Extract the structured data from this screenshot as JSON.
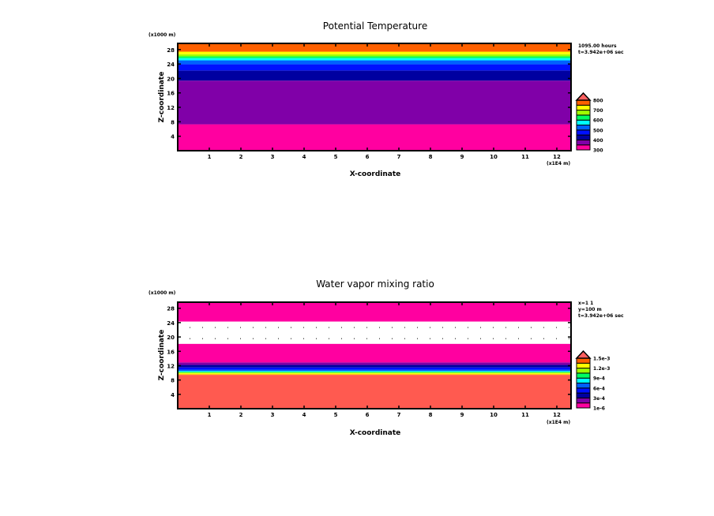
{
  "chart_data": [
    {
      "type": "heatmap",
      "title": "Potential Temperature",
      "xlabel": "X-coordinate",
      "ylabel": "Z-coordinate",
      "x_unit": "(x1E4 m)",
      "y_unit": "(x1000 m)",
      "info": [
        "1095.00 hours",
        "t=3.942e+06 sec"
      ],
      "xlim": [
        0,
        12.45
      ],
      "ylim": [
        0,
        29.7
      ],
      "xticks": [
        1,
        2,
        3,
        4,
        5,
        6,
        7,
        8,
        9,
        10,
        11,
        12
      ],
      "yticks": [
        4,
        8,
        12,
        16,
        20,
        24,
        28
      ],
      "bands": [
        {
          "z0": 0,
          "z1": 7.3,
          "color": "#ff00a0"
        },
        {
          "z0": 7.3,
          "z1": 19.4,
          "color": "#8000a8"
        },
        {
          "z0": 19.4,
          "z1": 22.2,
          "color": "#0000a0"
        },
        {
          "z0": 22.2,
          "z1": 23.9,
          "color": "#0010ff"
        },
        {
          "z0": 23.9,
          "z1": 25.0,
          "color": "#0060ff"
        },
        {
          "z0": 25.0,
          "z1": 25.6,
          "color": "#00ffff"
        },
        {
          "z0": 25.6,
          "z1": 26.1,
          "color": "#00ff60"
        },
        {
          "z0": 26.1,
          "z1": 26.7,
          "color": "#a0ff00"
        },
        {
          "z0": 26.7,
          "z1": 27.4,
          "color": "#ffff00"
        },
        {
          "z0": 27.4,
          "z1": 29.7,
          "color": "#ff6000"
        }
      ],
      "colorbar": {
        "colors": [
          "#ff00a0",
          "#8000a8",
          "#0000a0",
          "#0010ff",
          "#0060ff",
          "#00ffff",
          "#00ff60",
          "#a0ff00",
          "#ffff00",
          "#ff6000"
        ],
        "over_color": "#ff6060",
        "labels": [
          "800",
          "700",
          "600",
          "500",
          "400",
          "300"
        ]
      }
    },
    {
      "type": "heatmap",
      "title": "Water vapor mixing ratio",
      "xlabel": "X-coordinate",
      "ylabel": "Z-coordinate",
      "x_unit": "(x1E4 m)",
      "y_unit": "(x1000 m)",
      "info": [
        "x=1 1",
        "y=100 m",
        "t=3.942e+06 sec"
      ],
      "xlim": [
        0,
        12.45
      ],
      "ylim": [
        0,
        29.7
      ],
      "xticks": [
        1,
        2,
        3,
        4,
        5,
        6,
        7,
        8,
        9,
        10,
        11,
        12
      ],
      "yticks": [
        4,
        8,
        12,
        16,
        20,
        24,
        28
      ],
      "bands": [
        {
          "z0": 0,
          "z1": 9.4,
          "color": "#ff5a50"
        },
        {
          "z0": 9.4,
          "z1": 9.55,
          "color": "#ff6000"
        },
        {
          "z0": 9.55,
          "z1": 9.85,
          "color": "#ffff00"
        },
        {
          "z0": 9.85,
          "z1": 10.1,
          "color": "#a0ff00"
        },
        {
          "z0": 10.1,
          "z1": 10.3,
          "color": "#00ff60"
        },
        {
          "z0": 10.3,
          "z1": 10.5,
          "color": "#00ffff"
        },
        {
          "z0": 10.5,
          "z1": 10.9,
          "color": "#0060ff"
        },
        {
          "z0": 10.9,
          "z1": 11.5,
          "color": "#0010ff"
        },
        {
          "z0": 11.5,
          "z1": 12.2,
          "color": "#0000a0"
        },
        {
          "z0": 12.2,
          "z1": 12.9,
          "color": "#8000a8"
        },
        {
          "z0": 12.9,
          "z1": 18.1,
          "color": "#ff00a0"
        },
        {
          "z0": 18.1,
          "z1": 24.3,
          "color": "#ffffff",
          "dotted": true
        },
        {
          "z0": 24.3,
          "z1": 29.7,
          "color": "#ff00a0"
        }
      ],
      "colorbar": {
        "colors": [
          "#ff00a0",
          "#8000a8",
          "#0000a0",
          "#0010ff",
          "#0060ff",
          "#00ffff",
          "#00ff60",
          "#a0ff00",
          "#ffff00",
          "#ff6000"
        ],
        "over_color": "#ff6060",
        "labels": [
          "1.5e-3",
          "1.2e-3",
          "9e-4",
          "6e-4",
          "3e-4",
          "1e-6"
        ]
      }
    }
  ]
}
